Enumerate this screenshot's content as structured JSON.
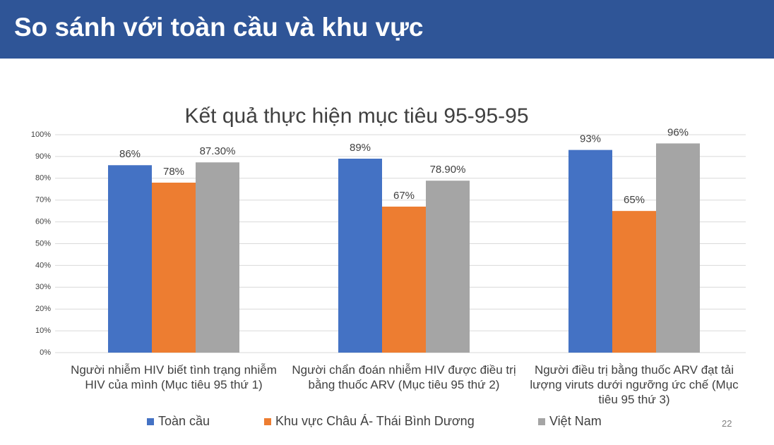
{
  "slide": {
    "title": "So sánh với toàn cầu và khu vực",
    "page_number": 22
  },
  "chart_data": {
    "type": "bar",
    "title": "Kết quả thực hiện mục tiêu 95-95-95",
    "categories": [
      "Người nhiễm HIV biết tình trạng nhiễm HIV của mình (Mục tiêu 95 thứ 1)",
      "Người chẩn đoán nhiễm HIV được điều trị bằng thuốc ARV (Mục tiêu 95 thứ 2)",
      "Người điều trị bằng thuốc ARV đạt tải lượng viruts dưới ngưỡng ức chế (Mục tiêu 95 thứ 3)"
    ],
    "series": [
      {
        "name": "Toàn cầu",
        "color": "#4472c4",
        "values": [
          86,
          89,
          93
        ],
        "value_labels": [
          "86%",
          "89%",
          "93%"
        ]
      },
      {
        "name": "Khu vực Châu Á- Thái Bình Dương",
        "color": "#ed7d31",
        "values": [
          78,
          67,
          65
        ],
        "value_labels": [
          "78%",
          "67%",
          "65%"
        ]
      },
      {
        "name": "Việt Nam",
        "color": "#a5a5a5",
        "values": [
          87.3,
          78.9,
          96
        ],
        "value_labels": [
          "87.30%",
          "78.90%",
          "96%"
        ]
      }
    ],
    "ylim": [
      0,
      100
    ],
    "yticks": [
      {
        "value": 0,
        "label": "0%"
      },
      {
        "value": 10,
        "label": "10%"
      },
      {
        "value": 20,
        "label": "20%"
      },
      {
        "value": 30,
        "label": "30%"
      },
      {
        "value": 40,
        "label": "40%"
      },
      {
        "value": 50,
        "label": "50%"
      },
      {
        "value": 60,
        "label": "60%"
      },
      {
        "value": 70,
        "label": "70%"
      },
      {
        "value": 80,
        "label": "80%"
      },
      {
        "value": 90,
        "label": "90%"
      },
      {
        "value": 100,
        "label": "100%"
      }
    ],
    "grid": true,
    "legend": "bottom"
  }
}
